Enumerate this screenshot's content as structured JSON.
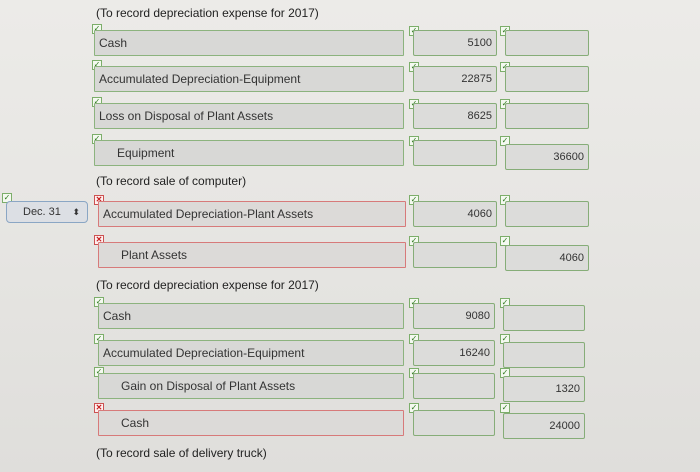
{
  "notes": {
    "n1": "(To record depreciation expense for 2017)",
    "n2": "(To record sale of computer)",
    "n3": "(To record depreciation expense for 2017)",
    "n4": "(To record sale of delivery truck)"
  },
  "date_select": {
    "value": "Dec. 31",
    "arrow": "⬍"
  },
  "marks": {
    "check": "✓",
    "x": "✕"
  },
  "entries": [
    {
      "account": "Cash",
      "debit": "5100",
      "credit": ""
    },
    {
      "account": "Accumulated Depreciation-Equipment",
      "debit": "22875",
      "credit": ""
    },
    {
      "account": "Loss on Disposal of Plant Assets",
      "debit": "8625",
      "credit": ""
    },
    {
      "account": "Equipment",
      "debit": "",
      "credit": "36600"
    },
    {
      "account": "Accumulated Depreciation-Plant Assets",
      "debit": "4060",
      "credit": ""
    },
    {
      "account": "Plant Assets",
      "debit": "",
      "credit": "4060"
    },
    {
      "account": "Cash",
      "debit": "9080",
      "credit": ""
    },
    {
      "account": "Accumulated Depreciation-Equipment",
      "debit": "16240",
      "credit": ""
    },
    {
      "account": "Gain on Disposal of Plant Assets",
      "debit": "",
      "credit": "1320"
    },
    {
      "account": "Cash",
      "debit": "",
      "credit": "24000"
    }
  ]
}
